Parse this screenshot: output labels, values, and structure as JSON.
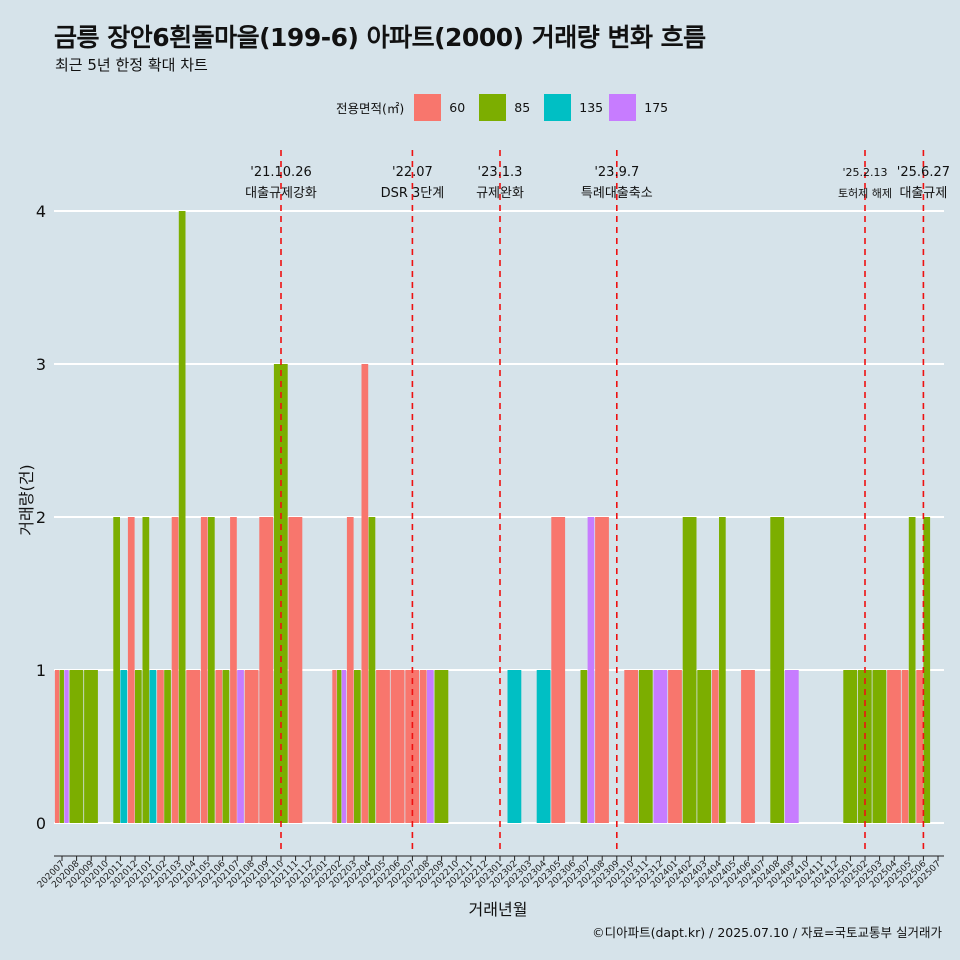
{
  "header": {
    "title": "금릉 장안6흰돌마을(199-6) 아파트(2000) 거래량 변화 흐름",
    "subtitle": "최근 5년 한정 확대 차트"
  },
  "caption": "©디아파트(dapt.kr) / 2025.07.10 / 자료=국토교통부 실거래가",
  "legend": {
    "title": "전용면적(㎡)",
    "items": [
      {
        "label": "60",
        "color": "#F8766D"
      },
      {
        "label": "85",
        "color": "#7CAE00"
      },
      {
        "label": "135",
        "color": "#00BFC4"
      },
      {
        "label": "175",
        "color": "#C77CFF"
      }
    ]
  },
  "chart_data": {
    "type": "bar",
    "xlabel": "거래년월",
    "ylabel": "거래량(건)",
    "ylim": [
      0,
      4
    ],
    "y_ticks": [
      0,
      1,
      2,
      3,
      4
    ],
    "grid": true,
    "legend_position": "top",
    "categories": [
      "202007",
      "202008",
      "202009",
      "202010",
      "202011",
      "202012",
      "202101",
      "202102",
      "202103",
      "202104",
      "202105",
      "202106",
      "202107",
      "202108",
      "202109",
      "202110",
      "202111",
      "202112",
      "202201",
      "202202",
      "202203",
      "202204",
      "202205",
      "202206",
      "202207",
      "202208",
      "202209",
      "202210",
      "202211",
      "202212",
      "202301",
      "202302",
      "202303",
      "202304",
      "202305",
      "202306",
      "202307",
      "202308",
      "202309",
      "202310",
      "202311",
      "202312",
      "202401",
      "202402",
      "202403",
      "202404",
      "202405",
      "202406",
      "202407",
      "202408",
      "202409",
      "202410",
      "202411",
      "202412",
      "202501",
      "202502",
      "202503",
      "202504",
      "202505",
      "202506",
      "202507"
    ],
    "series": [
      {
        "name": "60",
        "color": "#F8766D",
        "values": [
          1,
          0,
          0,
          0,
          0,
          2,
          0,
          1,
          2,
          1,
          2,
          1,
          2,
          1,
          2,
          0,
          2,
          0,
          0,
          1,
          2,
          3,
          1,
          1,
          1,
          1,
          0,
          0,
          0,
          0,
          0,
          0,
          0,
          0,
          2,
          0,
          0,
          2,
          0,
          1,
          0,
          0,
          1,
          0,
          0,
          1,
          0,
          1,
          0,
          0,
          0,
          0,
          0,
          0,
          0,
          0,
          0,
          1,
          1,
          1,
          0
        ]
      },
      {
        "name": "85",
        "color": "#7CAE00",
        "values": [
          1,
          1,
          1,
          0,
          2,
          1,
          2,
          1,
          4,
          0,
          2,
          1,
          0,
          0,
          0,
          3,
          0,
          0,
          0,
          1,
          1,
          2,
          0,
          0,
          0,
          0,
          1,
          0,
          0,
          0,
          0,
          0,
          0,
          0,
          0,
          0,
          1,
          0,
          0,
          0,
          1,
          0,
          0,
          2,
          1,
          2,
          0,
          0,
          0,
          2,
          0,
          0,
          0,
          0,
          1,
          1,
          1,
          0,
          2,
          2,
          0
        ]
      },
      {
        "name": "135",
        "color": "#00BFC4",
        "values": [
          0,
          0,
          0,
          0,
          1,
          0,
          1,
          0,
          0,
          0,
          0,
          0,
          0,
          0,
          0,
          0,
          0,
          0,
          0,
          0,
          0,
          0,
          0,
          0,
          0,
          0,
          0,
          0,
          0,
          0,
          0,
          1,
          0,
          1,
          0,
          0,
          0,
          0,
          0,
          0,
          0,
          0,
          0,
          0,
          0,
          0,
          0,
          0,
          0,
          0,
          0,
          0,
          0,
          0,
          0,
          0,
          0,
          0,
          0,
          0,
          0
        ]
      },
      {
        "name": "175",
        "color": "#C77CFF",
        "values": [
          1,
          0,
          0,
          0,
          0,
          0,
          0,
          0,
          0,
          0,
          0,
          0,
          1,
          0,
          0,
          0,
          0,
          0,
          0,
          1,
          0,
          0,
          0,
          0,
          0,
          1,
          0,
          0,
          0,
          0,
          0,
          0,
          0,
          0,
          0,
          0,
          2,
          0,
          0,
          0,
          0,
          1,
          0,
          0,
          0,
          0,
          0,
          0,
          0,
          0,
          1,
          0,
          0,
          0,
          0,
          0,
          0,
          0,
          0,
          0,
          0
        ]
      }
    ],
    "events": [
      {
        "date": "'21.10.26",
        "label": "대출규제강화",
        "month_index": 15
      },
      {
        "date": "'22.07",
        "label": "DSR 3단계",
        "month_index": 24
      },
      {
        "date": "'23.1.3",
        "label": "규제완화",
        "month_index": 30
      },
      {
        "date": "'23.9.7",
        "label": "특례대출축소",
        "month_index": 38
      },
      {
        "date": "'25.2.13",
        "label": "토허제 해제",
        "month_index": 55
      },
      {
        "date": "'25.6.27",
        "label": "대출규제",
        "month_index": 59
      }
    ]
  }
}
